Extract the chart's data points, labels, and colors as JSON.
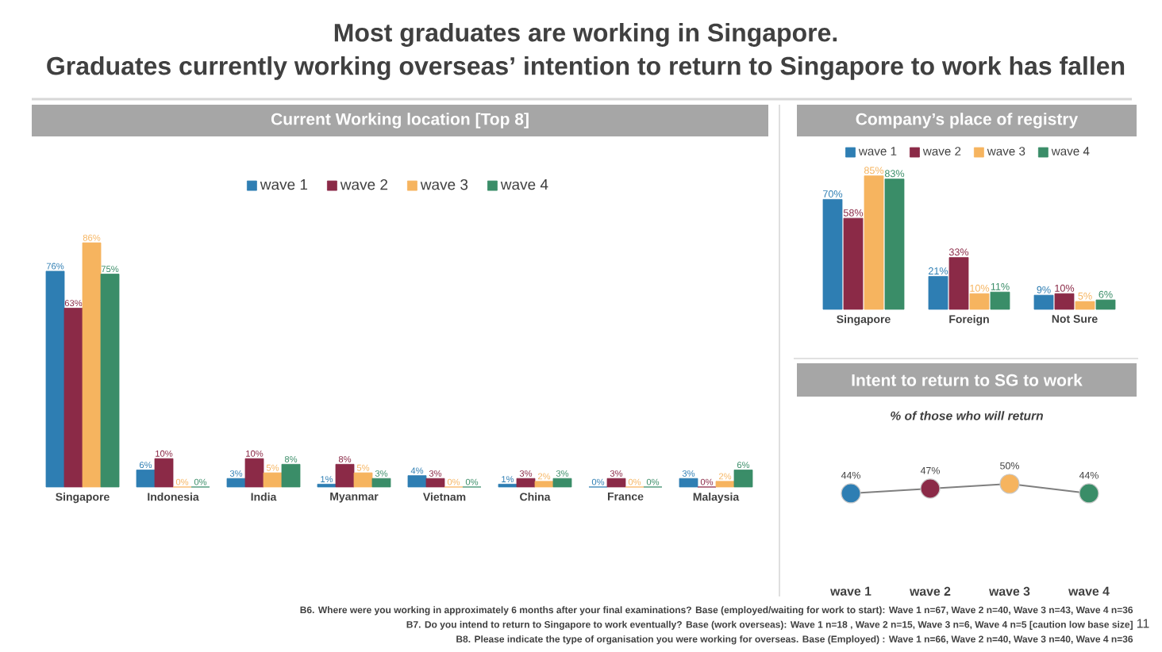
{
  "chart_data": [
    {
      "type": "other",
      "title": "Most graduates are working in Singapore.",
      "subtitle": "Graduates currently working overseas’ intention to return to Singapore to work has fallen",
      "annotations": [
        "B6. Where were you working in approximately 6 months after your final examinations? Base (employed/waiting for work to start): Wave 1 n=67, Wave 2 n=40, Wave 3 n=43, Wave 4 n=36",
        "B7. Do you intend to return to Singapore to work eventually? Base (work overseas): Wave 1 n=18 , Wave 2 n=15, Wave 3 n=6, Wave 4 n=5 [caution low base size]",
        "B8. Please indicate the type of organisation you were working for overseas. Base (Employed) : Wave 1 n=66, Wave 2 n=40, Wave 3 n=40, Wave 4 n=36",
        "11"
      ]
    },
    {
      "type": "bar",
      "title": "Current Working location [Top 8]",
      "categories": [
        "Singapore",
        "Indonesia",
        "India",
        "Myanmar",
        "Vietnam",
        "China",
        "France",
        "Malaysia"
      ],
      "legend": "top",
      "series": [
        {
          "name": "wave 1",
          "color": "#2e7eb3",
          "values": [
            76,
            6,
            3,
            1,
            4,
            1,
            0,
            3
          ],
          "value_labels": [
            "76%",
            "6%",
            "3%",
            "1%",
            "4%",
            "1%",
            "0%",
            "3%"
          ]
        },
        {
          "name": "wave 2",
          "color": "#8b2a47",
          "values": [
            63,
            10,
            10,
            8,
            3,
            3,
            3,
            0
          ],
          "value_labels": [
            "63%",
            "10%",
            "10%",
            "8%",
            "3%",
            "3%",
            "3%",
            "0%"
          ]
        },
        {
          "name": "wave 3",
          "color": "#f6b45f",
          "values": [
            86,
            0,
            5,
            5,
            0,
            2,
            0,
            2
          ],
          "value_labels": [
            "86%",
            "0%",
            "5%",
            "5%",
            "0%",
            "2%",
            "0%",
            "2%"
          ]
        },
        {
          "name": "wave 4",
          "color": "#3a8d68",
          "values": [
            75,
            0,
            8,
            3,
            0,
            3,
            0,
            6
          ],
          "value_labels": [
            "75%",
            "0%",
            "8%",
            "3%",
            "0%",
            "3%",
            "0%",
            "6%"
          ]
        }
      ]
    },
    {
      "type": "bar",
      "title": "Company’s place of registry",
      "categories": [
        "Singapore",
        "Foreign",
        "Not Sure"
      ],
      "legend": "top",
      "series": [
        {
          "name": "wave 1",
          "color": "#2e7eb3",
          "values": [
            70,
            21,
            9
          ],
          "value_labels": [
            "70%",
            "21%",
            "9%"
          ]
        },
        {
          "name": "wave 2",
          "color": "#8b2a47",
          "values": [
            58,
            33,
            10
          ],
          "value_labels": [
            "58%",
            "33%",
            "10%"
          ]
        },
        {
          "name": "wave 3",
          "color": "#f6b45f",
          "values": [
            85,
            10,
            5
          ],
          "value_labels": [
            "85%",
            "10%",
            "5%"
          ]
        },
        {
          "name": "wave 4",
          "color": "#3a8d68",
          "values": [
            83,
            11,
            6
          ],
          "value_labels": [
            "83%",
            "11%",
            "6%"
          ]
        }
      ]
    },
    {
      "type": "line",
      "title": "Intent to return to SG to work",
      "subtitle": "% of those who will return",
      "categories": [
        "wave 1",
        "wave 2",
        "wave 3",
        "wave 4"
      ],
      "marker": "circle",
      "series": [
        {
          "color": "#7f7f7f",
          "colors": [
            "#2e7eb3",
            "#8b2a47",
            "#f6b45f",
            "#3a8d68"
          ],
          "values": [
            44,
            47,
            50,
            44
          ],
          "value_labels": [
            "44%",
            "47%",
            "50%",
            "44%"
          ]
        }
      ]
    }
  ]
}
